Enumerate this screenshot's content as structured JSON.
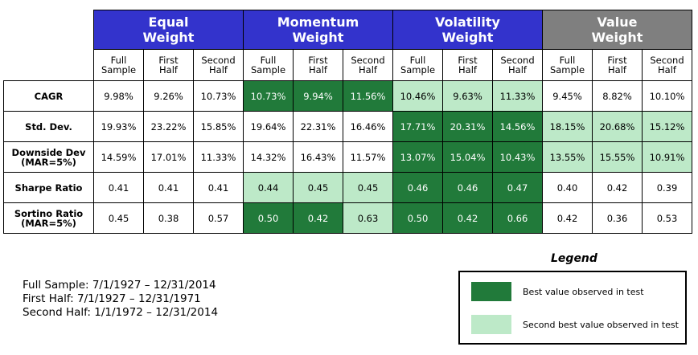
{
  "chart_data": {
    "type": "table",
    "groups": [
      {
        "label": "Equal Weight",
        "color": "#3333cc"
      },
      {
        "label": "Momentum Weight",
        "color": "#3333cc"
      },
      {
        "label": "Volatility  Weight",
        "color": "#3333cc"
      },
      {
        "label": "Value Weight",
        "color": "#7f7f7f"
      }
    ],
    "periods": [
      "Full Sample",
      "First Half",
      "Second Half"
    ],
    "rows": [
      {
        "label": "CAGR",
        "values": [
          "9.98%",
          "9.26%",
          "10.73%",
          "10.73%",
          "9.94%",
          "11.56%",
          "10.46%",
          "9.63%",
          "11.33%",
          "9.45%",
          "8.82%",
          "10.10%"
        ],
        "highlight": [
          "",
          "",
          "",
          "best",
          "best",
          "best",
          "second",
          "second",
          "second",
          "",
          "",
          ""
        ]
      },
      {
        "label": "Std. Dev.",
        "values": [
          "19.93%",
          "23.22%",
          "15.85%",
          "19.64%",
          "22.31%",
          "16.46%",
          "17.71%",
          "20.31%",
          "14.56%",
          "18.15%",
          "20.68%",
          "15.12%"
        ],
        "highlight": [
          "",
          "",
          "",
          "",
          "",
          "",
          "best",
          "best",
          "best",
          "second",
          "second",
          "second"
        ]
      },
      {
        "label": "Downside Dev (MAR=5%)",
        "values": [
          "14.59%",
          "17.01%",
          "11.33%",
          "14.32%",
          "16.43%",
          "11.57%",
          "13.07%",
          "15.04%",
          "10.43%",
          "13.55%",
          "15.55%",
          "10.91%"
        ],
        "highlight": [
          "",
          "",
          "",
          "",
          "",
          "",
          "best",
          "best",
          "best",
          "second",
          "second",
          "second"
        ]
      },
      {
        "label": "Sharpe Ratio",
        "values": [
          "0.41",
          "0.41",
          "0.41",
          "0.44",
          "0.45",
          "0.45",
          "0.46",
          "0.46",
          "0.47",
          "0.40",
          "0.42",
          "0.39"
        ],
        "highlight": [
          "",
          "",
          "",
          "second",
          "second",
          "second",
          "best",
          "best",
          "best",
          "",
          "",
          ""
        ]
      },
      {
        "label": "Sortino Ratio (MAR=5%)",
        "values": [
          "0.45",
          "0.38",
          "0.57",
          "0.50",
          "0.42",
          "0.63",
          "0.50",
          "0.42",
          "0.66",
          "0.42",
          "0.36",
          "0.53"
        ],
        "highlight": [
          "",
          "",
          "",
          "best",
          "best",
          "second",
          "best",
          "best",
          "best",
          "",
          "",
          ""
        ]
      }
    ],
    "colors": {
      "best": "#217a3a",
      "second": "#bde9c8"
    }
  },
  "notes": [
    "Full Sample: 7/1/1927 – 12/31/2014",
    "First Half: 7/1/1927 – 12/31/1971",
    "Second Half: 1/1/1972 – 12/31/2014"
  ],
  "legend": {
    "title": "Legend",
    "items": [
      {
        "label": "Best value observed in test",
        "level": "best"
      },
      {
        "label": "Second best value observed in test",
        "level": "second"
      }
    ]
  }
}
